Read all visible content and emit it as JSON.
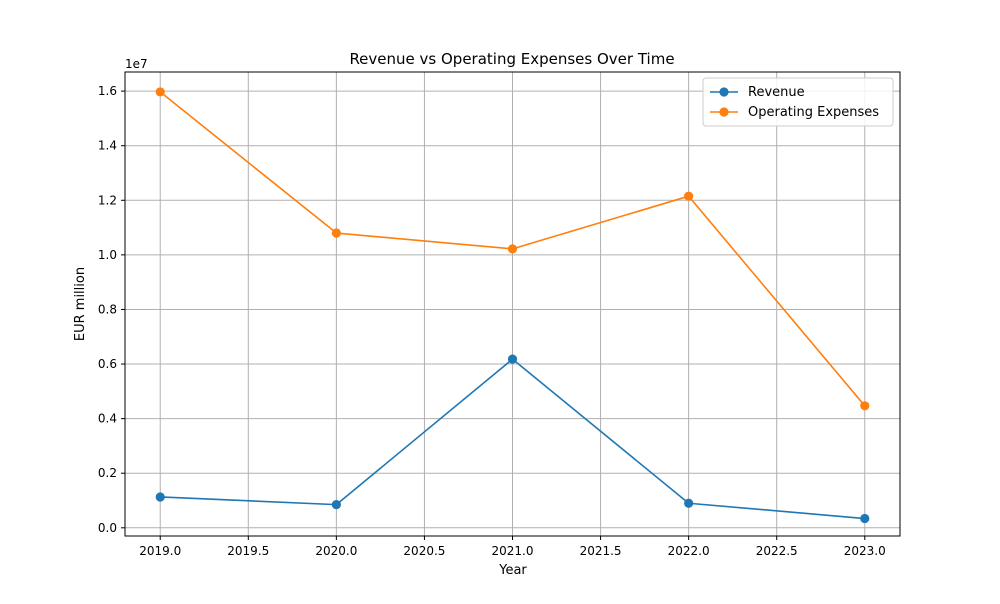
{
  "chart_data": {
    "type": "line",
    "title": "Revenue vs Operating Expenses Over Time",
    "xlabel": "Year",
    "ylabel": "EUR million",
    "offset_text": "1e7",
    "x": [
      2019.0,
      2020.0,
      2021.0,
      2022.0,
      2023.0
    ],
    "xlim": [
      2018.8,
      2023.2
    ],
    "ylim": [
      -300000,
      16700000
    ],
    "x_ticks": [
      2019.0,
      2019.5,
      2020.0,
      2020.5,
      2021.0,
      2021.5,
      2022.0,
      2022.5,
      2023.0
    ],
    "x_tick_labels": [
      "2019.0",
      "2019.5",
      "2020.0",
      "2020.5",
      "2021.0",
      "2021.5",
      "2022.0",
      "2022.5",
      "2023.0"
    ],
    "y_ticks": [
      0,
      2000000,
      4000000,
      6000000,
      8000000,
      10000000,
      12000000,
      14000000,
      16000000
    ],
    "y_tick_labels": [
      "0.0",
      "0.2",
      "0.4",
      "0.6",
      "0.8",
      "1.0",
      "1.2",
      "1.4",
      "1.6"
    ],
    "grid": true,
    "legend_position": "top-right",
    "series": [
      {
        "name": "Revenue",
        "color": "#1f77b4",
        "marker": "circle",
        "values": [
          1130000,
          850000,
          6180000,
          900000,
          340000
        ]
      },
      {
        "name": "Operating Expenses",
        "color": "#ff7f0e",
        "marker": "circle",
        "values": [
          15970000,
          10800000,
          10220000,
          12150000,
          4470000
        ]
      }
    ]
  }
}
